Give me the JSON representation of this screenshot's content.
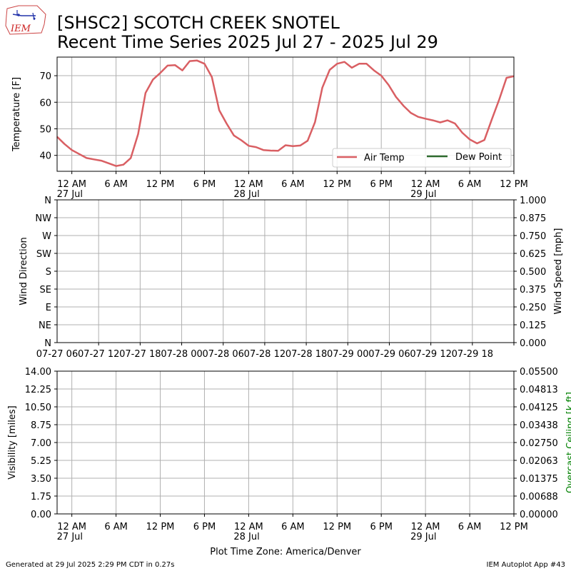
{
  "title": {
    "line1": "[SHSC2] SCOTCH CREEK SNOTEL",
    "line2": "Recent Time Series 2025 Jul 27 - 2025 Jul 29"
  },
  "logo_text": "IEM",
  "footer": {
    "left": "Generated at 29 Jul 2025 2:29 PM CDT in 0.27s",
    "right": "IEM Autoplot App #43",
    "center": "Plot Time Zone: America/Denver"
  },
  "colors": {
    "air_temp": "#d95f63",
    "dew_point": "#2e6b2e",
    "ceiling_label": "#008000",
    "grid": "#b0b0b0"
  },
  "chart_data": [
    {
      "type": "line",
      "ylabel": "Temperature [F]",
      "ylim": [
        34,
        77
      ],
      "yticks": [
        40,
        50,
        60,
        70
      ],
      "xlim_hours": [
        -2,
        60
      ],
      "xtick_labels": [
        {
          "h": 0,
          "l1": "12 AM",
          "l2": "27 Jul"
        },
        {
          "h": 6,
          "l1": "6 AM",
          "l2": ""
        },
        {
          "h": 12,
          "l1": "12 PM",
          "l2": ""
        },
        {
          "h": 18,
          "l1": "6 PM",
          "l2": ""
        },
        {
          "h": 24,
          "l1": "12 AM",
          "l2": "28 Jul"
        },
        {
          "h": 30,
          "l1": "6 AM",
          "l2": ""
        },
        {
          "h": 36,
          "l1": "12 PM",
          "l2": ""
        },
        {
          "h": 42,
          "l1": "6 PM",
          "l2": ""
        },
        {
          "h": 48,
          "l1": "12 AM",
          "l2": "29 Jul"
        },
        {
          "h": 54,
          "l1": "6 AM",
          "l2": ""
        },
        {
          "h": 60,
          "l1": "12 PM",
          "l2": ""
        }
      ],
      "legend": {
        "placement": "lower-right",
        "entries": [
          "Air Temp",
          "Dew Point"
        ]
      },
      "grid": true,
      "series": [
        {
          "name": "Air Temp",
          "x": [
            -2,
            -1,
            0,
            1,
            2,
            3,
            4,
            5,
            6,
            7,
            8,
            9,
            10,
            11,
            12,
            13,
            14,
            15,
            16,
            17,
            18,
            19,
            20,
            21,
            22,
            23,
            24,
            25,
            26,
            27,
            28,
            29,
            30,
            31,
            32,
            33,
            34,
            35,
            36,
            37,
            38,
            39,
            40,
            41,
            42,
            43,
            44,
            45,
            46,
            47,
            48,
            49,
            50,
            51,
            52,
            53,
            54,
            55,
            56,
            57,
            58,
            59,
            60
          ],
          "y": [
            47,
            44.3,
            42,
            40.5,
            39,
            38.5,
            38,
            37,
            36,
            36.5,
            39,
            48,
            63.5,
            68.5,
            71,
            73.8,
            74,
            72,
            75.5,
            75.7,
            74.5,
            69.5,
            57,
            52,
            47.5,
            45.7,
            43.6,
            43.1,
            42,
            41.8,
            41.7,
            43.8,
            43.5,
            43.7,
            45.5,
            52.5,
            65.5,
            72.2,
            74.5,
            75.2,
            73,
            74.5,
            74.5,
            72,
            70,
            66.5,
            62,
            58.7,
            56,
            54.5,
            53.8,
            53.2,
            52.4,
            53.2,
            52,
            48.5,
            46,
            44.5,
            45.8,
            53.5,
            61,
            69.2,
            69.8
          ]
        },
        {
          "name": "Dew Point",
          "x": [],
          "y": []
        }
      ]
    },
    {
      "type": "line",
      "ylabel": "Wind Direction",
      "ylabel_right": "Wind Speed [mph]",
      "yticks_left": [
        "N",
        "NE",
        "E",
        "SE",
        "S",
        "SW",
        "W",
        "NW",
        "N"
      ],
      "yticks_right": [
        "0.000",
        "0.125",
        "0.250",
        "0.375",
        "0.500",
        "0.625",
        "0.750",
        "0.875",
        "1.000"
      ],
      "ylim_right": [
        0,
        1
      ],
      "xtick_labels": [
        "07-27 06",
        "07-27 12",
        "07-27 18",
        "07-28 00",
        "07-28 06",
        "07-28 12",
        "07-28 18",
        "07-29 00",
        "07-29 06",
        "07-29 12",
        "07-29 18"
      ],
      "grid": true,
      "series": []
    },
    {
      "type": "line",
      "ylabel": "Visibility [miles]",
      "ylabel_right": "Overcast Ceiling [k ft]",
      "yticks_left": [
        "0.00",
        "1.75",
        "3.50",
        "5.25",
        "7.00",
        "8.75",
        "10.50",
        "12.25",
        "14.00"
      ],
      "yticks_right": [
        "0.00000",
        "0.00688",
        "0.01375",
        "0.02063",
        "0.02750",
        "0.03438",
        "0.04125",
        "0.04813",
        "0.05500"
      ],
      "ylim": [
        0,
        14
      ],
      "ylim_right": [
        0,
        0.055
      ],
      "grid": true,
      "series": []
    }
  ]
}
